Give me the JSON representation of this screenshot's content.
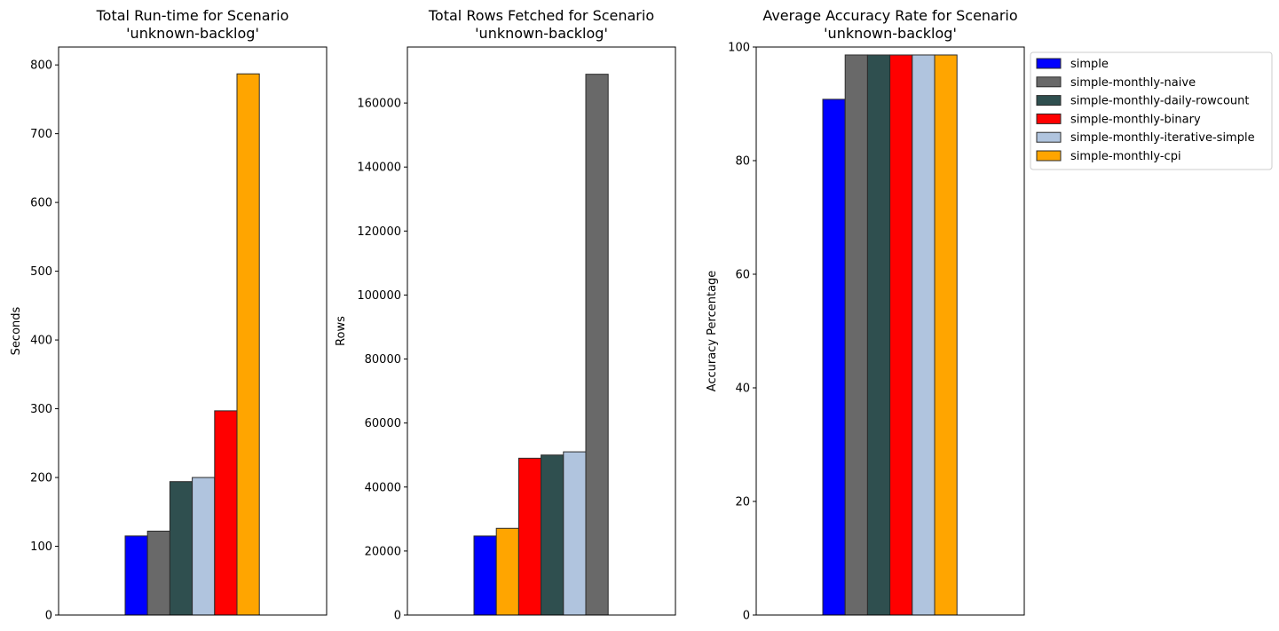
{
  "chart_data": [
    {
      "type": "bar",
      "title": [
        "Total Run-time for Scenario",
        "'unknown-backlog'"
      ],
      "ylabel": "Seconds",
      "ylim": [
        0,
        826
      ],
      "yticks": [
        0,
        100,
        200,
        300,
        400,
        500,
        600,
        700,
        800
      ],
      "bars": [
        {
          "series": "simple",
          "value": 115
        },
        {
          "series": "simple-monthly-naive",
          "value": 122
        },
        {
          "series": "simple-monthly-daily-rowcount",
          "value": 194
        },
        {
          "series": "simple-monthly-iterative-simple",
          "value": 200
        },
        {
          "series": "simple-monthly-binary",
          "value": 297
        },
        {
          "series": "simple-monthly-cpi",
          "value": 787
        }
      ]
    },
    {
      "type": "bar",
      "title": [
        "Total Rows Fetched for Scenario",
        "'unknown-backlog'"
      ],
      "ylabel": "Rows",
      "ylim": [
        0,
        177500
      ],
      "yticks": [
        0,
        20000,
        40000,
        60000,
        80000,
        100000,
        120000,
        140000,
        160000
      ],
      "bars": [
        {
          "series": "simple",
          "value": 24700
        },
        {
          "series": "simple-monthly-cpi",
          "value": 27100
        },
        {
          "series": "simple-monthly-binary",
          "value": 49000
        },
        {
          "series": "simple-monthly-daily-rowcount",
          "value": 50000
        },
        {
          "series": "simple-monthly-iterative-simple",
          "value": 51000
        },
        {
          "series": "simple-monthly-naive",
          "value": 169000
        }
      ]
    },
    {
      "type": "bar",
      "title": [
        "Average Accuracy Rate for Scenario",
        "'unknown-backlog'"
      ],
      "ylabel": "Accuracy Percentage",
      "ylim": [
        0,
        100
      ],
      "yticks": [
        0,
        20,
        40,
        60,
        80,
        100
      ],
      "bars": [
        {
          "series": "simple",
          "value": 90.8
        },
        {
          "series": "simple-monthly-naive",
          "value": 98.6
        },
        {
          "series": "simple-monthly-daily-rowcount",
          "value": 98.6
        },
        {
          "series": "simple-monthly-binary",
          "value": 98.6
        },
        {
          "series": "simple-monthly-iterative-simple",
          "value": 98.6
        },
        {
          "series": "simple-monthly-cpi",
          "value": 98.6
        }
      ]
    }
  ],
  "legend": {
    "placement": "outside-right of third chart",
    "entries": [
      {
        "name": "simple",
        "color": "#0000ff"
      },
      {
        "name": "simple-monthly-naive",
        "color": "#696969"
      },
      {
        "name": "simple-monthly-daily-rowcount",
        "color": "#2f4f4f"
      },
      {
        "name": "simple-monthly-binary",
        "color": "#ff0000"
      },
      {
        "name": "simple-monthly-iterative-simple",
        "color": "#b0c4de"
      },
      {
        "name": "simple-monthly-cpi",
        "color": "#ffa500"
      }
    ]
  }
}
